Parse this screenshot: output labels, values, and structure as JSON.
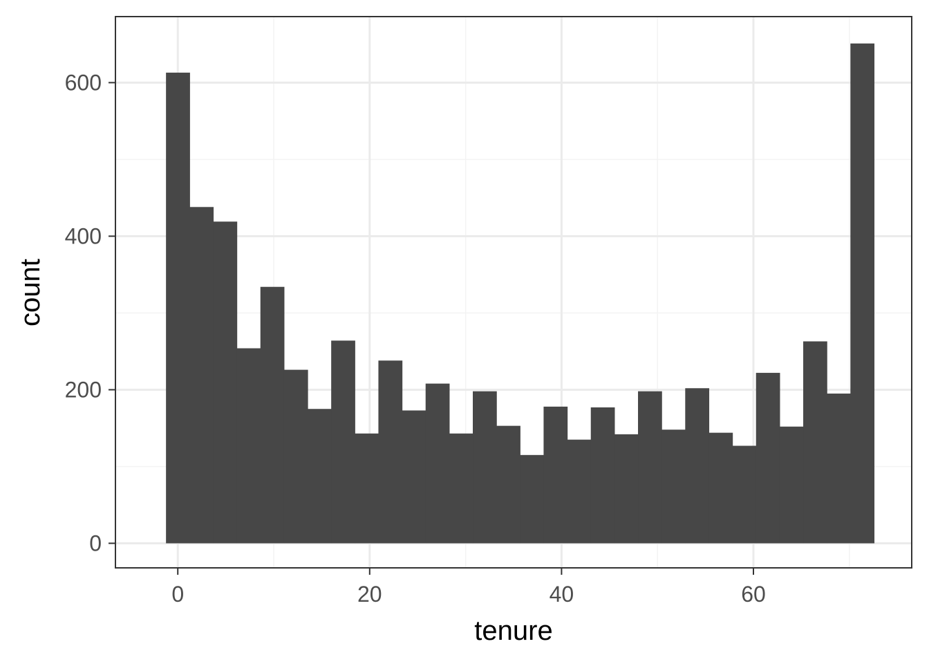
{
  "chart_data": {
    "type": "bar",
    "subtype": "histogram",
    "xlabel": "tenure",
    "ylabel": "count",
    "xlim": [
      -6.5,
      76.5
    ],
    "ylim": [
      -32,
      686
    ],
    "x_ticks": [
      0,
      20,
      40,
      60
    ],
    "y_ticks": [
      0,
      200,
      400,
      600
    ],
    "bin_width": 2.46,
    "bins": [
      {
        "x": 0.0,
        "count": 613
      },
      {
        "x": 2.46,
        "count": 438
      },
      {
        "x": 4.92,
        "count": 419
      },
      {
        "x": 7.38,
        "count": 254
      },
      {
        "x": 9.84,
        "count": 334
      },
      {
        "x": 12.3,
        "count": 226
      },
      {
        "x": 14.76,
        "count": 175
      },
      {
        "x": 17.22,
        "count": 264
      },
      {
        "x": 19.68,
        "count": 143
      },
      {
        "x": 22.14,
        "count": 238
      },
      {
        "x": 24.6,
        "count": 173
      },
      {
        "x": 27.06,
        "count": 208
      },
      {
        "x": 29.52,
        "count": 143
      },
      {
        "x": 31.98,
        "count": 198
      },
      {
        "x": 34.44,
        "count": 153
      },
      {
        "x": 36.9,
        "count": 115
      },
      {
        "x": 39.36,
        "count": 178
      },
      {
        "x": 41.82,
        "count": 135
      },
      {
        "x": 44.28,
        "count": 177
      },
      {
        "x": 46.74,
        "count": 142
      },
      {
        "x": 49.2,
        "count": 198
      },
      {
        "x": 51.66,
        "count": 148
      },
      {
        "x": 54.12,
        "count": 202
      },
      {
        "x": 56.58,
        "count": 144
      },
      {
        "x": 59.04,
        "count": 127
      },
      {
        "x": 61.5,
        "count": 222
      },
      {
        "x": 63.96,
        "count": 152
      },
      {
        "x": 66.42,
        "count": 263
      },
      {
        "x": 68.88,
        "count": 195
      },
      {
        "x": 71.34,
        "count": 651
      }
    ],
    "grid": true,
    "colors": {
      "bar_fill": "#474747",
      "grid_major": "#ebebeb",
      "grid_minor": "#f3f3f3",
      "panel_border": "#333333",
      "tick_text": "#4d4d4d",
      "axis_title_text": "#000000"
    }
  }
}
